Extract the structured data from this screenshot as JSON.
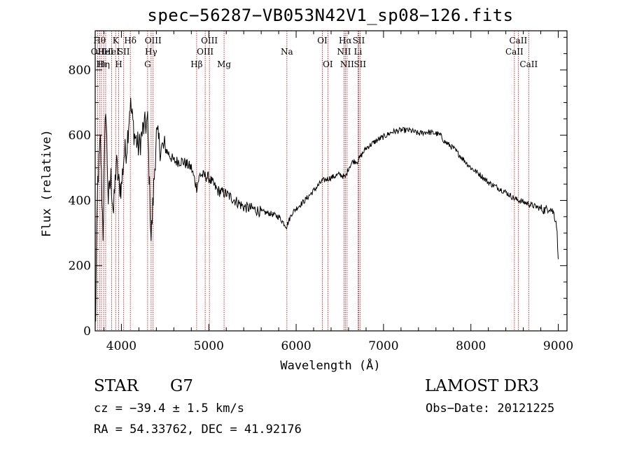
{
  "chart_data": {
    "type": "line",
    "title": "spec−56287−VB053N42V1_sp08−126.fits",
    "xlabel": "Wavelength (Å)",
    "ylabel": "Flux (relative)",
    "xlim": [
      3700,
      9100
    ],
    "ylim": [
      0,
      920
    ],
    "x_ticks": [
      {
        "value": 4000,
        "label": "4000"
      },
      {
        "value": 5000,
        "label": "5000"
      },
      {
        "value": 6000,
        "label": "6000"
      },
      {
        "value": 7000,
        "label": "7000"
      },
      {
        "value": 8000,
        "label": "8000"
      },
      {
        "value": 9000,
        "label": "9000"
      }
    ],
    "y_ticks": [
      {
        "value": 0,
        "label": "0"
      },
      {
        "value": 200,
        "label": "200"
      },
      {
        "value": 400,
        "label": "400"
      },
      {
        "value": 600,
        "label": "600"
      },
      {
        "value": 800,
        "label": "800"
      }
    ],
    "series": [
      {
        "name": "spectrum",
        "x": [
          3700,
          3730,
          3760,
          3790,
          3820,
          3850,
          3880,
          3910,
          3940,
          3970,
          4000,
          4030,
          4060,
          4100,
          4150,
          4200,
          4250,
          4300,
          4340,
          4400,
          4450,
          4500,
          4600,
          4700,
          4800,
          4861,
          4900,
          5000,
          5100,
          5200,
          5300,
          5400,
          5500,
          5600,
          5700,
          5800,
          5890,
          5950,
          6000,
          6100,
          6200,
          6300,
          6400,
          6500,
          6563,
          6600,
          6650,
          6700,
          6750,
          6800,
          6900,
          7000,
          7100,
          7200,
          7300,
          7400,
          7500,
          7600,
          7650,
          7700,
          7800,
          7900,
          8000,
          8100,
          8200,
          8300,
          8400,
          8500,
          8600,
          8700,
          8800,
          8850,
          8900,
          8950,
          8980,
          9000
        ],
        "y": [
          30,
          460,
          580,
          300,
          700,
          400,
          470,
          360,
          520,
          450,
          440,
          540,
          560,
          700,
          600,
          560,
          620,
          640,
          280,
          600,
          560,
          560,
          520,
          520,
          500,
          440,
          480,
          470,
          430,
          420,
          400,
          380,
          375,
          365,
          360,
          350,
          320,
          360,
          375,
          400,
          430,
          460,
          470,
          480,
          470,
          500,
          520,
          520,
          540,
          560,
          580,
          595,
          610,
          615,
          615,
          605,
          610,
          605,
          600,
          580,
          560,
          530,
          500,
          480,
          455,
          440,
          425,
          405,
          395,
          385,
          375,
          370,
          380,
          360,
          330,
          220
        ]
      }
    ],
    "spectral_lines": [
      {
        "wavelength": 3727,
        "label": "OII",
        "row": 2
      },
      {
        "wavelength": 3750,
        "label": "Hθ",
        "row": 1
      },
      {
        "wavelength": 3771,
        "label": "Hι",
        "row": 3
      },
      {
        "wavelength": 3797,
        "label": "Hη",
        "row": 3
      },
      {
        "wavelength": 3820,
        "label": "HeI",
        "row": 2
      },
      {
        "wavelength": 3889,
        "label": "HeI",
        "row": 2
      },
      {
        "wavelength": 3934,
        "label": "K",
        "row": 1
      },
      {
        "wavelength": 3969,
        "label": "H",
        "row": 3
      },
      {
        "wavelength": 4026,
        "label": "SII",
        "row": 2
      },
      {
        "wavelength": 4102,
        "label": "Hδ",
        "row": 1
      },
      {
        "wavelength": 4300,
        "label": "G",
        "row": 3
      },
      {
        "wavelength": 4340,
        "label": "Hγ",
        "row": 2
      },
      {
        "wavelength": 4363,
        "label": "OIII",
        "row": 1
      },
      {
        "wavelength": 4861,
        "label": "Hβ",
        "row": 3
      },
      {
        "wavelength": 4959,
        "label": "OIII",
        "row": 2
      },
      {
        "wavelength": 5007,
        "label": "OIII",
        "row": 1
      },
      {
        "wavelength": 5175,
        "label": "Mg",
        "row": 3
      },
      {
        "wavelength": 5894,
        "label": "Na",
        "row": 2
      },
      {
        "wavelength": 6300,
        "label": "OI",
        "row": 1
      },
      {
        "wavelength": 6363,
        "label": "OI",
        "row": 3
      },
      {
        "wavelength": 6548,
        "label": "NII",
        "row": 2
      },
      {
        "wavelength": 6563,
        "label": "Hα",
        "row": 1
      },
      {
        "wavelength": 6583,
        "label": "NII",
        "row": 3
      },
      {
        "wavelength": 6708,
        "label": "Li",
        "row": 2
      },
      {
        "wavelength": 6716,
        "label": "SII",
        "row": 1
      },
      {
        "wavelength": 6731,
        "label": "SII",
        "row": 3
      },
      {
        "wavelength": 8498,
        "label": "CaII",
        "row": 2
      },
      {
        "wavelength": 8542,
        "label": "CaII",
        "row": 1
      },
      {
        "wavelength": 8662,
        "label": "CaII",
        "row": 3
      }
    ]
  },
  "info": {
    "object_class": "STAR",
    "subclass": "G7",
    "survey": "LAMOST DR3",
    "redshift": "cz = −39.4 ± 1.5 km/s",
    "obs_date": "Obs−Date: 20121225",
    "coordinates": "RA =  54.33762, DEC =  41.92176"
  },
  "colors": {
    "line_marker": "#c00000",
    "spectrum": "#000000",
    "axes": "#000000"
  }
}
